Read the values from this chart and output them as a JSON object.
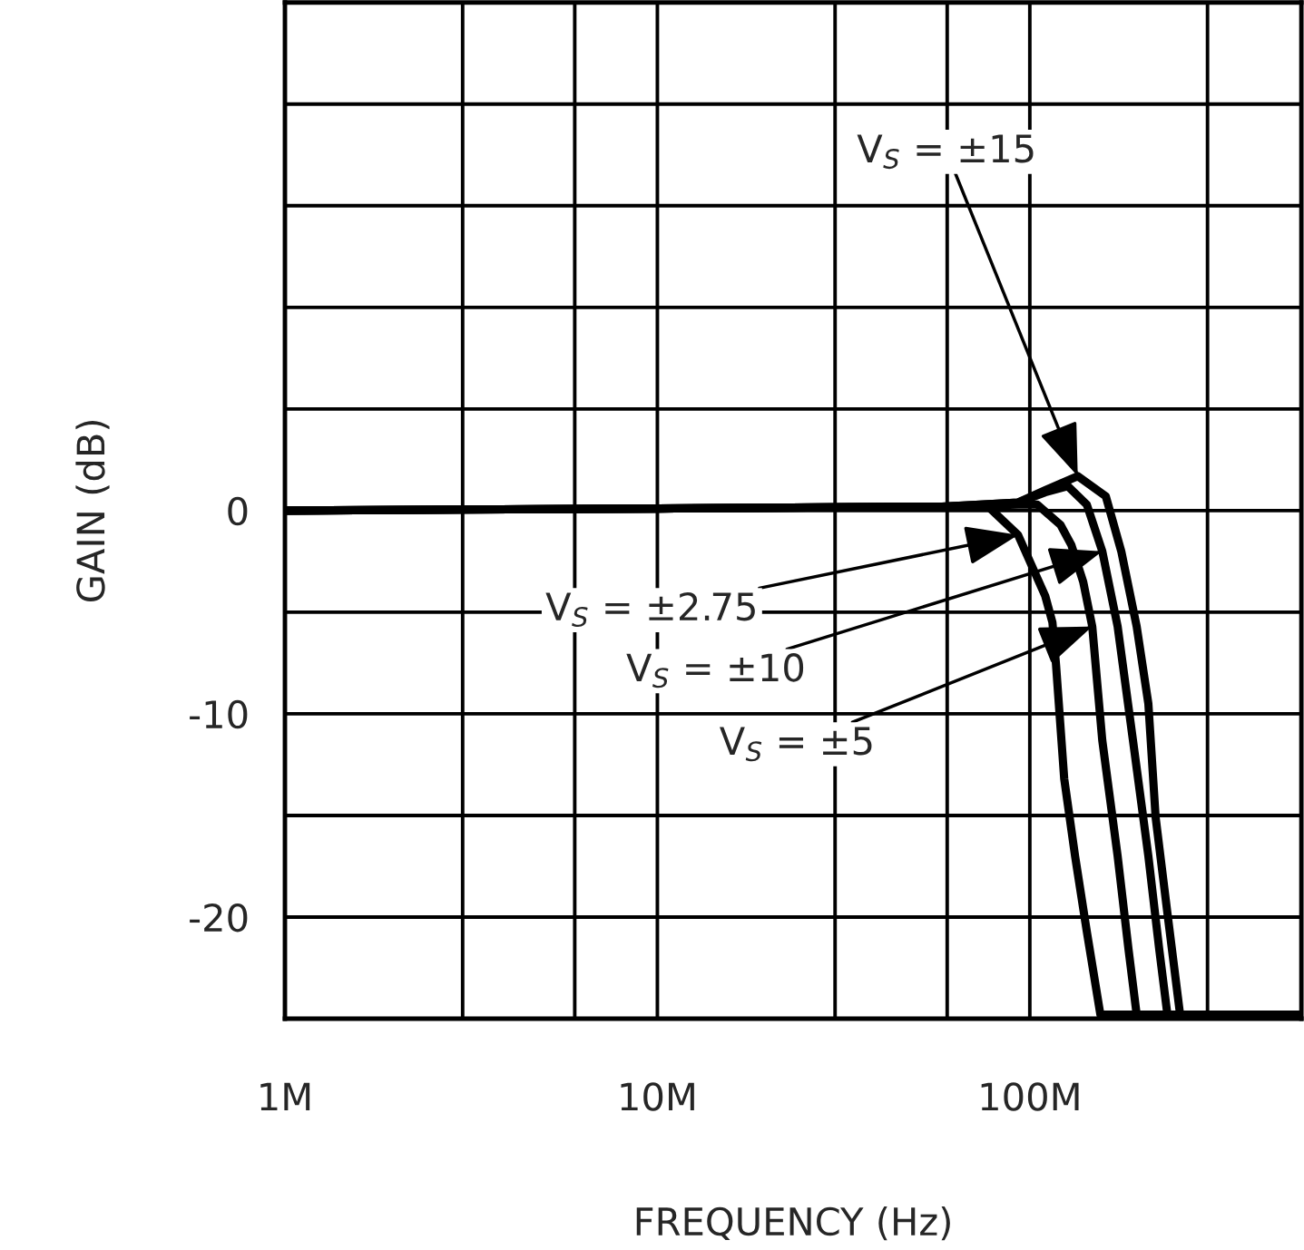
{
  "chart_data": {
    "type": "line",
    "xlabel": "FREQUENCY (Hz)",
    "ylabel": "GAIN (dB)",
    "log": "x",
    "grid": true,
    "legend": false,
    "marker": "none",
    "line_style": "solid",
    "xlim": [
      1000000,
      536000000
    ],
    "xticks": [
      {
        "value": 1000000,
        "label": "1M"
      },
      {
        "value": 3000000,
        "label": null
      },
      {
        "value": 6000000,
        "label": null
      },
      {
        "value": 10000000,
        "label": "10M"
      },
      {
        "value": 30000000,
        "label": null
      },
      {
        "value": 60000000,
        "label": null
      },
      {
        "value": 100000000,
        "label": "100M"
      },
      {
        "value": 300000000,
        "label": null
      }
    ],
    "ylim": [
      -25,
      25
    ],
    "yticks": [
      {
        "value": -25,
        "label": null
      },
      -20,
      {
        "value": -15,
        "label": null
      },
      -10,
      {
        "value": -5,
        "label": null
      },
      0,
      {
        "value": 5,
        "label": null
      },
      {
        "value": 10,
        "label": null
      },
      {
        "value": 15,
        "label": null
      },
      {
        "value": 20,
        "label": null
      },
      {
        "value": 25,
        "label": null
      }
    ],
    "series": [
      {
        "color": "#000000",
        "x": [
          1000000,
          10000000,
          58100000,
          77300000,
          93000000,
          110000000,
          115000000,
          117600000,
          123700000,
          132300000,
          142200000,
          154700000,
          536000000
        ],
        "values": [
          0,
          0.1,
          0.2,
          0.2,
          -1.2,
          -4.2,
          -5.5,
          -7.6,
          -13.2,
          -17,
          -20.7,
          -24.8,
          -24.8
        ]
      },
      {
        "color": "#000000",
        "x": [
          1000000,
          10000000,
          58100000,
          93000000,
          104600000,
          120900000,
          129300000,
          139100000,
          147100000,
          156500000,
          172100000,
          184100000,
          193600000,
          536000000
        ],
        "values": [
          0,
          0.1,
          0.2,
          0.3,
          0.3,
          -0.7,
          -1.7,
          -3.5,
          -5.7,
          -11.3,
          -17,
          -21.6,
          -24.8,
          -24.8
        ]
      },
      {
        "color": "#000000",
        "x": [
          1000000,
          10000000,
          58100000,
          93000000,
          110000000,
          126500000,
          142200000,
          156500000,
          172100000,
          189200000,
          208100000,
          222600000,
          234100000,
          536000000
        ],
        "values": [
          0,
          0.1,
          0.2,
          0.4,
          0.9,
          1.2,
          0.3,
          -2,
          -5.7,
          -11.3,
          -17,
          -21.6,
          -24.8,
          -24.8
        ]
      },
      {
        "color": "#000000",
        "x": [
          1000000,
          10000000,
          58100000,
          93000000,
          110000000,
          134500000,
          160000000,
          176000000,
          193600000,
          208100000,
          217700000,
          234100000,
          253200000,
          536000000
        ],
        "values": [
          0,
          0.1,
          0.2,
          0.4,
          1,
          1.7,
          0.7,
          -2,
          -5.7,
          -9.5,
          -15.1,
          -19.8,
          -24.8,
          -24.8
        ]
      }
    ],
    "annotations": [
      {
        "text": "V$_{S}$ = ±15",
        "x": 134500000,
        "y": 1.7
      },
      {
        "text": "V$_{S}$ = ±2.75",
        "x": 93000000,
        "y": -1.2
      },
      {
        "text": "V$_{S}$ = ±10",
        "x": 156500000,
        "y": -2
      },
      {
        "text": "V$_{S}$ = ±5",
        "x": 147100000,
        "y": -5.7
      }
    ]
  }
}
